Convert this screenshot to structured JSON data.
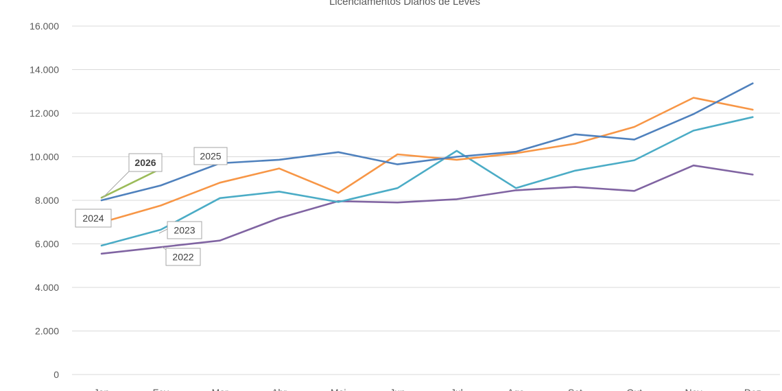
{
  "chart_data": {
    "type": "line",
    "title": "Licenciamentos Diários de Leves",
    "xlabel": "",
    "ylabel": "",
    "categories": [
      "Jan",
      "Fev",
      "Mar",
      "Abr",
      "Mai",
      "Jun",
      "Jul",
      "Ago",
      "Set",
      "Out",
      "Nov",
      "Dez"
    ],
    "ylim": [
      0,
      16000
    ],
    "y_ticks": [
      0,
      2000,
      4000,
      6000,
      8000,
      10000,
      12000,
      14000,
      16000
    ],
    "y_tick_labels": [
      "0",
      "2.000",
      "4.000",
      "6.000",
      "8.000",
      "10.000",
      "12.000",
      "14.000",
      "16.000"
    ],
    "grid": true,
    "legend": "none",
    "series": [
      {
        "name": "2022",
        "color": "#8064a2",
        "values": [
          5550,
          5850,
          6150,
          7180,
          7960,
          7900,
          8050,
          8460,
          8610,
          8430,
          9600,
          9180
        ]
      },
      {
        "name": "2023",
        "color": "#4bacc6",
        "values": [
          5920,
          6650,
          8100,
          8400,
          7920,
          8560,
          10270,
          8560,
          9360,
          9840,
          11200,
          11820
        ]
      },
      {
        "name": "2024",
        "color": "#f79646",
        "values": [
          6980,
          7760,
          8810,
          9460,
          8340,
          10110,
          9860,
          10160,
          10600,
          11370,
          12710,
          12160
        ]
      },
      {
        "name": "2025",
        "color": "#4f81bd",
        "values": [
          8000,
          8680,
          9700,
          9860,
          10210,
          9650,
          10000,
          10230,
          11030,
          10790,
          11960,
          13370
        ]
      },
      {
        "name": "2026",
        "color": "#9bbb59",
        "values": [
          8120,
          9450,
          null,
          null,
          null,
          null,
          null,
          null,
          null,
          null,
          null,
          null
        ]
      }
    ],
    "annotations": [
      {
        "text": "2026",
        "series": "2026",
        "bold": true
      },
      {
        "text": "2025",
        "series": "2025",
        "bold": false
      },
      {
        "text": "2024",
        "series": "2024",
        "bold": false
      },
      {
        "text": "2023",
        "series": "2023",
        "bold": false
      },
      {
        "text": "2022",
        "series": "2022",
        "bold": false
      }
    ]
  }
}
